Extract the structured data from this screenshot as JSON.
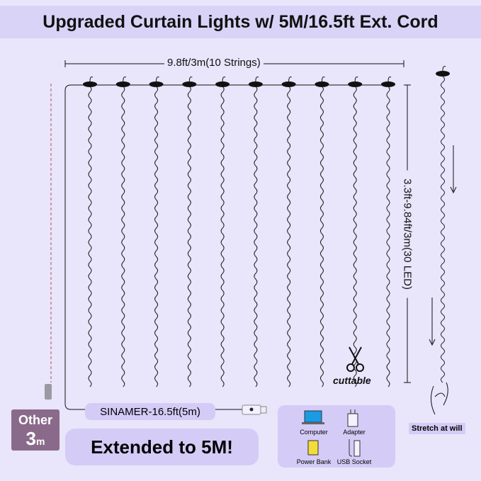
{
  "title": "Upgraded Curtain Lights w/ 5M/16.5ft Ext. Cord",
  "width_label": "9.8ft/3m(10 Strings)",
  "height_label": "3.3ft-9.84ft/3m(30 LED)",
  "cut_label": "cuttable",
  "other": {
    "line1": "Other",
    "num": "3",
    "unit": "m"
  },
  "cord_label": "SINAMER-16.5ft(5m)",
  "extended_label": "Extended to 5M!",
  "power_sources": [
    "Computer",
    "Adapter",
    "Power Bank",
    "USB Socket"
  ],
  "stretch_label": "Stretch at will",
  "string_count": 10,
  "colors": {
    "background": "#e9e5fb",
    "pill": "#d4ccf6",
    "other_box": "#8a6a8a"
  }
}
